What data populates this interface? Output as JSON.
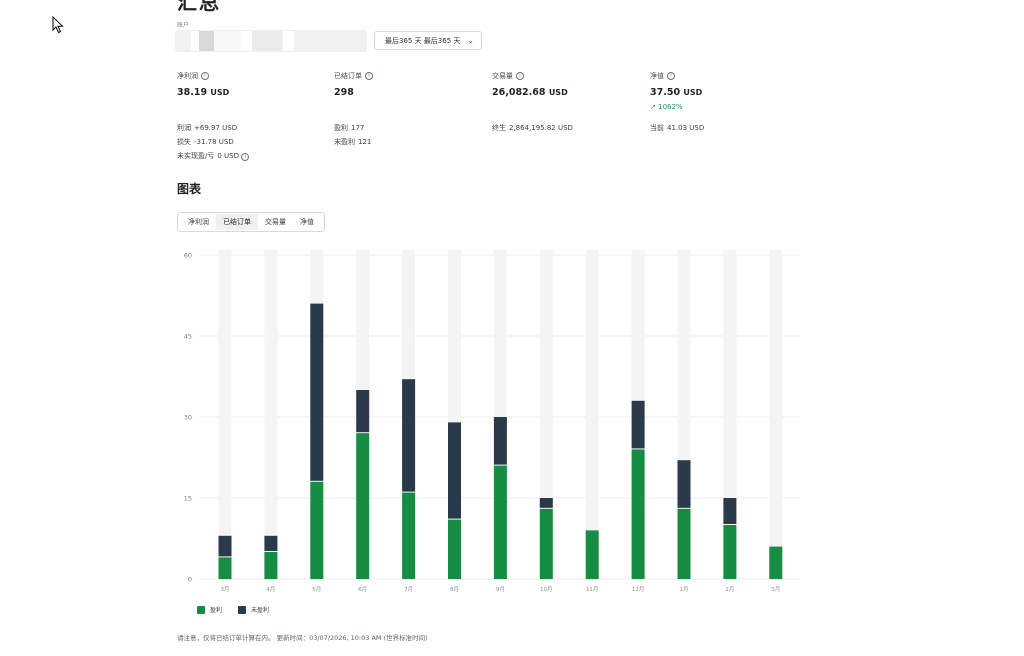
{
  "header": {
    "title": "汇总",
    "account_label": "账户",
    "period_label": "最后365 天 最后365 天"
  },
  "metrics": [
    {
      "label": "净利润",
      "value": "38.19",
      "unit": "USD",
      "change": ""
    },
    {
      "label": "已结订单",
      "value": "298",
      "unit": "",
      "change": ""
    },
    {
      "label": "交易量",
      "value": "26,082.68",
      "unit": "USD",
      "change": ""
    },
    {
      "label": "净值",
      "value": "37.50",
      "unit": "USD",
      "change": "1062%"
    }
  ],
  "details": {
    "profit": {
      "key": "利润",
      "value": "+69.97 USD"
    },
    "loss": {
      "key": "损失",
      "value": "-31.78 USD"
    },
    "unrealized": {
      "key": "未实现盈/亏",
      "value": "0 USD"
    },
    "profitable": {
      "key": "盈利",
      "value": "177"
    },
    "unprofitable": {
      "key": "未盈利",
      "value": "121"
    },
    "lifetime": {
      "key": "终生",
      "value": "2,864,195.82 USD"
    },
    "current": {
      "key": "当前",
      "value": "41.03 USD"
    }
  },
  "chart_section": {
    "title": "图表",
    "tabs": [
      "净利润",
      "已结订单",
      "交易量",
      "净值"
    ],
    "active_tab": 1
  },
  "footer": {
    "note": "请注意，仅将已结订单计算在内。 更新时间：03/07/2026, 10:03 AM (世界标准时间)"
  },
  "colors": {
    "profit": "#178c43",
    "loss": "#2a3a4a",
    "track": "#f4f4f4",
    "grid": "#eeeeee",
    "up": "#1e9e4f"
  },
  "chart_data": {
    "type": "bar",
    "stacked": true,
    "categories": [
      "3月",
      "4月",
      "5月",
      "6月",
      "7月",
      "8月",
      "9月",
      "10月",
      "11月",
      "12月",
      "1月",
      "2月",
      "3月"
    ],
    "series": [
      {
        "name": "盈利",
        "values": [
          4,
          5,
          18,
          27,
          16,
          11,
          21,
          13,
          9,
          24,
          13,
          10,
          6
        ]
      },
      {
        "name": "未盈利",
        "values": [
          4,
          3,
          33,
          8,
          21,
          18,
          9,
          2,
          0,
          9,
          9,
          5,
          0
        ]
      }
    ],
    "yticks": [
      0,
      15,
      30,
      45,
      60
    ],
    "ylim": [
      0,
      60
    ],
    "grid": true,
    "legend": "bottom-left"
  }
}
